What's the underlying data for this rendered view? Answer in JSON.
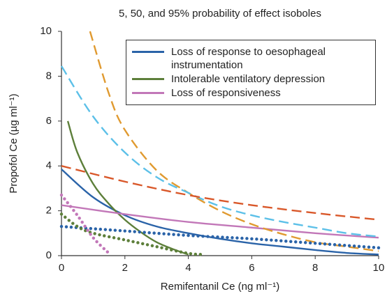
{
  "chart_data": {
    "type": "line",
    "title": "5, 50, and 95% probability of effect isoboles",
    "xlabel": "Remifentanil Ce (ng ml⁻¹)",
    "ylabel": "Propofol Ce (µg ml⁻¹)",
    "xlim": [
      0,
      10
    ],
    "ylim": [
      0,
      10
    ],
    "xticks": [
      0,
      2,
      4,
      6,
      8,
      10
    ],
    "yticks": [
      0,
      2,
      4,
      6,
      8,
      10
    ],
    "grid": false,
    "legend": "upper right",
    "series": [
      {
        "name": "Loss of response to oesophageal instrumentation",
        "color": "#2a63a8",
        "dash": "solid",
        "x": [
          0,
          1,
          2,
          3,
          4,
          5,
          6,
          7,
          8,
          9,
          10
        ],
        "values": [
          3.85,
          2.6,
          1.8,
          1.3,
          1.0,
          0.75,
          0.55,
          0.4,
          0.25,
          0.12,
          0.05
        ]
      },
      {
        "name": "Intolerable ventilatory depression",
        "color": "#5d7f3a",
        "dash": "solid",
        "x": [
          0.2,
          0.5,
          1,
          1.5,
          2,
          2.5,
          3,
          3.5,
          4
        ],
        "values": [
          6.0,
          4.6,
          3.2,
          2.3,
          1.6,
          1.05,
          0.6,
          0.3,
          0.05
        ]
      },
      {
        "name": "Loss of responsiveness",
        "color": "#c277b8",
        "dash": "solid",
        "x": [
          0,
          2,
          4,
          6,
          8,
          10
        ],
        "values": [
          2.25,
          1.85,
          1.5,
          1.25,
          1.0,
          0.8
        ]
      },
      {
        "color": "#e09a30",
        "dash": "dashed",
        "x": [
          0.9,
          1.5,
          2,
          3,
          4,
          5,
          6,
          7,
          8,
          9,
          10
        ],
        "values": [
          10,
          7.2,
          5.6,
          3.8,
          2.8,
          2.0,
          1.4,
          0.95,
          0.6,
          0.4,
          0.2
        ]
      },
      {
        "color": "#5cc0e8",
        "dash": "dashed",
        "x": [
          0,
          1,
          2,
          3,
          4,
          5,
          6,
          7,
          8,
          9,
          10
        ],
        "values": [
          8.45,
          6.2,
          4.6,
          3.5,
          2.8,
          2.2,
          1.8,
          1.5,
          1.25,
          1.0,
          0.85
        ]
      },
      {
        "color": "#d9582a",
        "dash": "dashed",
        "x": [
          0,
          2,
          4,
          6,
          8,
          10
        ],
        "values": [
          4.0,
          3.3,
          2.7,
          2.25,
          1.9,
          1.6
        ]
      },
      {
        "color": "#2a63a8",
        "dash": "dotted",
        "x": [
          0,
          2,
          4,
          6,
          8,
          10
        ],
        "values": [
          1.3,
          1.1,
          0.9,
          0.75,
          0.55,
          0.35
        ]
      },
      {
        "color": "#5d7f3a",
        "dash": "dotted",
        "x": [
          0,
          0.5,
          1,
          2,
          3,
          4,
          4.5
        ],
        "values": [
          1.85,
          1.3,
          1.0,
          0.7,
          0.4,
          0.1,
          0.05
        ]
      },
      {
        "color": "#c277b8",
        "dash": "dotted",
        "x": [
          0,
          0.5,
          1,
          1.5
        ],
        "values": [
          2.7,
          1.8,
          0.8,
          0.1
        ]
      }
    ]
  }
}
